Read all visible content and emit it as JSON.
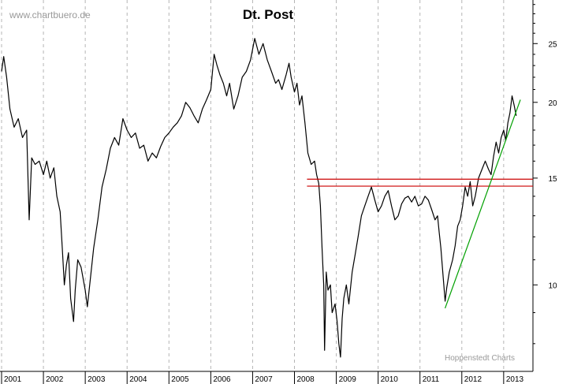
{
  "watermark": "www.chartbuero.de",
  "credit": "Hoppenstedt Charts",
  "chart_data": {
    "type": "line",
    "title": "Dt. Post",
    "xlabel": "",
    "ylabel": "",
    "y_scale": "log",
    "ylim": [
      7.2,
      29.5
    ],
    "xlim": [
      2001.0,
      2013.7
    ],
    "y_ticks": [
      10,
      15,
      20,
      25
    ],
    "x_tick_labels": [
      "2001",
      "2002",
      "2003",
      "2004",
      "2005",
      "2006",
      "2007",
      "2008",
      "2009",
      "2010",
      "2011",
      "2012",
      "2013"
    ],
    "grid": "vertical dashed at year boundaries",
    "colors": {
      "price": "#000000",
      "support": "#cc0000",
      "trend": "#00a000"
    },
    "series": [
      {
        "values_xy": [
          [
            2001.0,
            22.5
          ],
          [
            2001.05,
            23.8
          ],
          [
            2001.12,
            22.0
          ],
          [
            2001.2,
            19.5
          ],
          [
            2001.3,
            18.2
          ],
          [
            2001.4,
            18.8
          ],
          [
            2001.5,
            17.5
          ],
          [
            2001.6,
            18.0
          ],
          [
            2001.66,
            12.8
          ],
          [
            2001.72,
            16.2
          ],
          [
            2001.8,
            15.8
          ],
          [
            2001.9,
            16.0
          ],
          [
            2002.0,
            15.2
          ],
          [
            2002.08,
            16.0
          ],
          [
            2002.16,
            15.0
          ],
          [
            2002.25,
            15.6
          ],
          [
            2002.32,
            14.0
          ],
          [
            2002.4,
            13.2
          ],
          [
            2002.45,
            11.5
          ],
          [
            2002.5,
            10.0
          ],
          [
            2002.55,
            10.8
          ],
          [
            2002.6,
            11.3
          ],
          [
            2002.65,
            9.5
          ],
          [
            2002.72,
            8.7
          ],
          [
            2002.76,
            9.8
          ],
          [
            2002.82,
            11.0
          ],
          [
            2002.9,
            10.7
          ],
          [
            2003.0,
            9.8
          ],
          [
            2003.05,
            9.2
          ],
          [
            2003.12,
            10.2
          ],
          [
            2003.2,
            11.5
          ],
          [
            2003.3,
            12.8
          ],
          [
            2003.4,
            14.5
          ],
          [
            2003.5,
            15.5
          ],
          [
            2003.6,
            16.8
          ],
          [
            2003.7,
            17.5
          ],
          [
            2003.8,
            17.0
          ],
          [
            2003.9,
            18.8
          ],
          [
            2004.0,
            18.0
          ],
          [
            2004.1,
            17.5
          ],
          [
            2004.2,
            17.8
          ],
          [
            2004.3,
            16.8
          ],
          [
            2004.4,
            17.0
          ],
          [
            2004.5,
            16.0
          ],
          [
            2004.6,
            16.5
          ],
          [
            2004.7,
            16.2
          ],
          [
            2004.8,
            16.9
          ],
          [
            2004.9,
            17.5
          ],
          [
            2005.0,
            17.8
          ],
          [
            2005.1,
            18.2
          ],
          [
            2005.2,
            18.5
          ],
          [
            2005.3,
            19.0
          ],
          [
            2005.4,
            20.0
          ],
          [
            2005.5,
            19.6
          ],
          [
            2005.6,
            19.0
          ],
          [
            2005.7,
            18.5
          ],
          [
            2005.8,
            19.5
          ],
          [
            2005.9,
            20.2
          ],
          [
            2006.0,
            21.0
          ],
          [
            2006.08,
            24.0
          ],
          [
            2006.15,
            23.0
          ],
          [
            2006.22,
            22.2
          ],
          [
            2006.3,
            21.5
          ],
          [
            2006.38,
            20.5
          ],
          [
            2006.45,
            21.5
          ],
          [
            2006.55,
            19.5
          ],
          [
            2006.65,
            20.5
          ],
          [
            2006.75,
            22.0
          ],
          [
            2006.85,
            22.5
          ],
          [
            2006.95,
            23.5
          ],
          [
            2007.05,
            25.5
          ],
          [
            2007.15,
            24.0
          ],
          [
            2007.25,
            25.0
          ],
          [
            2007.35,
            23.5
          ],
          [
            2007.45,
            22.5
          ],
          [
            2007.55,
            21.5
          ],
          [
            2007.62,
            21.8
          ],
          [
            2007.7,
            21.0
          ],
          [
            2007.8,
            22.2
          ],
          [
            2007.87,
            23.2
          ],
          [
            2007.92,
            22.0
          ],
          [
            2008.0,
            20.8
          ],
          [
            2008.06,
            21.5
          ],
          [
            2008.12,
            19.8
          ],
          [
            2008.18,
            20.5
          ],
          [
            2008.25,
            18.5
          ],
          [
            2008.32,
            16.5
          ],
          [
            2008.4,
            15.8
          ],
          [
            2008.48,
            16.0
          ],
          [
            2008.53,
            15.2
          ],
          [
            2008.58,
            14.7
          ],
          [
            2008.62,
            13.5
          ],
          [
            2008.66,
            11.5
          ],
          [
            2008.7,
            10.0
          ],
          [
            2008.72,
            7.8
          ],
          [
            2008.76,
            10.5
          ],
          [
            2008.8,
            9.8
          ],
          [
            2008.86,
            10.0
          ],
          [
            2008.9,
            9.0
          ],
          [
            2008.97,
            9.3
          ],
          [
            2009.02,
            8.7
          ],
          [
            2009.06,
            8.0
          ],
          [
            2009.1,
            7.6
          ],
          [
            2009.14,
            8.8
          ],
          [
            2009.18,
            9.5
          ],
          [
            2009.24,
            10.0
          ],
          [
            2009.3,
            9.3
          ],
          [
            2009.38,
            10.5
          ],
          [
            2009.45,
            11.2
          ],
          [
            2009.52,
            12.0
          ],
          [
            2009.6,
            13.0
          ],
          [
            2009.68,
            13.5
          ],
          [
            2009.76,
            14.0
          ],
          [
            2009.84,
            14.5
          ],
          [
            2009.92,
            13.8
          ],
          [
            2010.0,
            13.2
          ],
          [
            2010.08,
            13.5
          ],
          [
            2010.16,
            14.0
          ],
          [
            2010.24,
            14.3
          ],
          [
            2010.32,
            13.5
          ],
          [
            2010.4,
            12.8
          ],
          [
            2010.48,
            13.0
          ],
          [
            2010.56,
            13.6
          ],
          [
            2010.64,
            13.9
          ],
          [
            2010.72,
            14.0
          ],
          [
            2010.8,
            13.7
          ],
          [
            2010.88,
            14.0
          ],
          [
            2010.96,
            13.5
          ],
          [
            2011.04,
            13.6
          ],
          [
            2011.12,
            14.0
          ],
          [
            2011.2,
            13.8
          ],
          [
            2011.28,
            13.3
          ],
          [
            2011.36,
            12.8
          ],
          [
            2011.42,
            13.0
          ],
          [
            2011.46,
            12.2
          ],
          [
            2011.5,
            11.5
          ],
          [
            2011.56,
            10.2
          ],
          [
            2011.6,
            9.4
          ],
          [
            2011.64,
            9.9
          ],
          [
            2011.7,
            10.5
          ],
          [
            2011.78,
            11.0
          ],
          [
            2011.84,
            11.6
          ],
          [
            2011.9,
            12.5
          ],
          [
            2011.96,
            12.8
          ],
          [
            2012.02,
            13.5
          ],
          [
            2012.08,
            14.5
          ],
          [
            2012.14,
            14.0
          ],
          [
            2012.2,
            14.8
          ],
          [
            2012.26,
            13.5
          ],
          [
            2012.32,
            14.0
          ],
          [
            2012.4,
            15.0
          ],
          [
            2012.48,
            15.5
          ],
          [
            2012.56,
            16.0
          ],
          [
            2012.64,
            15.5
          ],
          [
            2012.7,
            15.2
          ],
          [
            2012.76,
            16.3
          ],
          [
            2012.82,
            17.2
          ],
          [
            2012.88,
            16.5
          ],
          [
            2012.94,
            17.5
          ],
          [
            2013.0,
            18.0
          ],
          [
            2013.05,
            17.3
          ],
          [
            2013.1,
            18.5
          ],
          [
            2013.15,
            19.2
          ],
          [
            2013.2,
            20.5
          ],
          [
            2013.25,
            19.8
          ],
          [
            2013.3,
            19.0
          ]
        ]
      }
    ],
    "annotations": [
      {
        "type": "horizontal-line",
        "color": "#cc0000",
        "y": 14.94,
        "x_from": 2008.3,
        "x_to": 2013.7
      },
      {
        "type": "horizontal-line",
        "color": "#cc0000",
        "y": 14.55,
        "x_from": 2008.3,
        "x_to": 2013.7
      },
      {
        "type": "trend-line",
        "color": "#00a000",
        "from": [
          2011.6,
          9.15
        ],
        "to": [
          2013.4,
          20.2
        ]
      }
    ]
  }
}
